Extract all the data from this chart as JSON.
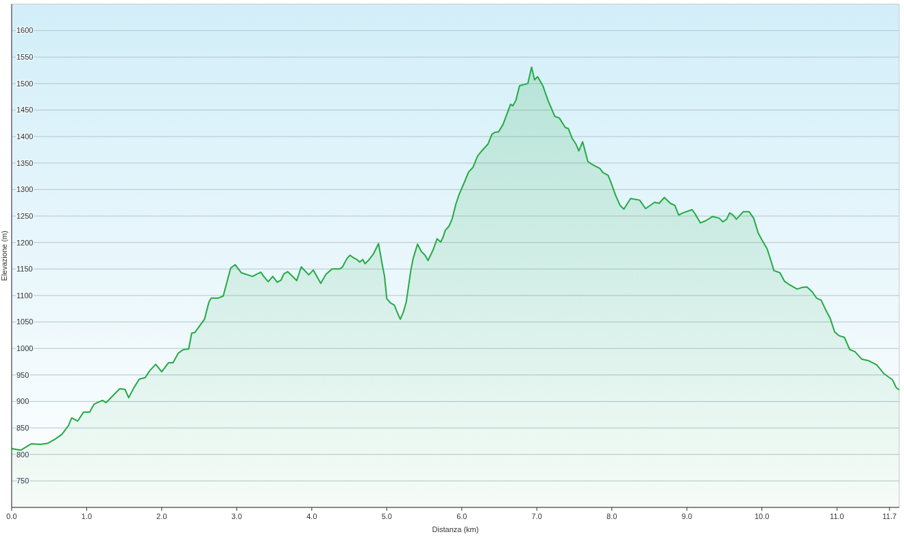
{
  "chart_data": {
    "type": "area",
    "xlabel": "Distanza  (km)",
    "ylabel": "Elevazione (m)",
    "xlim": [
      0,
      11.83
    ],
    "ylim": [
      700,
      1650
    ],
    "xticks": [
      {
        "value": 0,
        "label": "0.0"
      },
      {
        "value": 1,
        "label": "1.0"
      },
      {
        "value": 2,
        "label": "2.0"
      },
      {
        "value": 3,
        "label": "3.0"
      },
      {
        "value": 4,
        "label": "4.0"
      },
      {
        "value": 5,
        "label": "5.0"
      },
      {
        "value": 6,
        "label": "6.0"
      },
      {
        "value": 7,
        "label": "7.0"
      },
      {
        "value": 8,
        "label": "8.0"
      },
      {
        "value": 9,
        "label": "9.0"
      },
      {
        "value": 10,
        "label": "10.0"
      },
      {
        "value": 11,
        "label": "11.0"
      },
      {
        "value": 11.7,
        "label": "11.7"
      }
    ],
    "yticks": [
      750,
      800,
      850,
      900,
      950,
      1000,
      1050,
      1100,
      1150,
      1200,
      1250,
      1300,
      1350,
      1400,
      1450,
      1500,
      1550,
      1600
    ],
    "grid": "y",
    "marker": "none",
    "series": [
      {
        "color": "#22aa44",
        "x": [
          0,
          0.12,
          0.26,
          0.39,
          0.48,
          0.58,
          0.67,
          0.76,
          0.8,
          0.88,
          0.96,
          1.04,
          1.1,
          1.21,
          1.26,
          1.44,
          1.51,
          1.56,
          1.63,
          1.7,
          1.78,
          1.84,
          1.92,
          2,
          2.09,
          2.15,
          2.22,
          2.29,
          2.36,
          2.4,
          2.44,
          2.57,
          2.63,
          2.66,
          2.75,
          2.82,
          2.92,
          2.98,
          3.06,
          3.21,
          3.32,
          3.36,
          3.42,
          3.48,
          3.54,
          3.59,
          3.63,
          3.68,
          3.8,
          3.86,
          3.96,
          4.02,
          4.12,
          4.19,
          4.27,
          4.37,
          4.41,
          4.47,
          4.51,
          4.56,
          4.61,
          4.64,
          4.68,
          4.71,
          4.76,
          4.82,
          4.89,
          4.94,
          4.97,
          5,
          5.05,
          5.1,
          5.14,
          5.18,
          5.22,
          5.26,
          5.32,
          5.35,
          5.41,
          5.46,
          5.51,
          5.55,
          5.62,
          5.67,
          5.72,
          5.75,
          5.78,
          5.83,
          5.87,
          5.92,
          5.96,
          6.01,
          6.05,
          6.09,
          6.15,
          6.21,
          6.26,
          6.35,
          6.4,
          6.44,
          6.49,
          6.55,
          6.6,
          6.65,
          6.68,
          6.72,
          6.77,
          6.88,
          6.93,
          6.97,
          7.01,
          7.08,
          7.15,
          7.24,
          7.3,
          7.38,
          7.42,
          7.47,
          7.52,
          7.56,
          7.61,
          7.63,
          7.68,
          7.73,
          7.84,
          7.88,
          7.95,
          8,
          8.05,
          8.11,
          8.16,
          8.25,
          8.37,
          8.45,
          8.57,
          8.63,
          8.7,
          8.78,
          8.84,
          8.89,
          8.95,
          9.07,
          9.11,
          9.18,
          9.25,
          9.34,
          9.43,
          9.48,
          9.53,
          9.57,
          9.62,
          9.66,
          9.75,
          9.83,
          9.89,
          9.95,
          10,
          10.07,
          10.12,
          10.16,
          10.24,
          10.3,
          10.37,
          10.47,
          10.53,
          10.6,
          10.67,
          10.73,
          10.79,
          10.85,
          10.91,
          10.97,
          11.03,
          11.1,
          11.17,
          11.24,
          11.33,
          11.42,
          11.53,
          11.63,
          11.7,
          11.74,
          11.79,
          11.83
        ],
        "values": [
          811,
          808,
          820,
          819,
          821,
          829,
          838,
          855,
          869,
          863,
          880,
          880,
          895,
          902,
          898,
          924,
          923,
          907,
          926,
          942,
          945,
          958,
          970,
          956,
          973,
          973,
          991,
          998,
          999,
          1029,
          1030,
          1055,
          1088,
          1095,
          1095,
          1099,
          1152,
          1158,
          1143,
          1136,
          1144,
          1136,
          1126,
          1136,
          1125,
          1129,
          1141,
          1145,
          1128,
          1154,
          1139,
          1148,
          1123,
          1140,
          1150,
          1150,
          1154,
          1170,
          1176,
          1171,
          1167,
          1163,
          1168,
          1160,
          1167,
          1178,
          1198,
          1158,
          1136,
          1094,
          1086,
          1082,
          1068,
          1055,
          1068,
          1088,
          1147,
          1169,
          1197,
          1183,
          1176,
          1166,
          1187,
          1207,
          1201,
          1210,
          1223,
          1231,
          1244,
          1272,
          1289,
          1306,
          1319,
          1333,
          1342,
          1363,
          1372,
          1386,
          1404,
          1408,
          1409,
          1423,
          1442,
          1461,
          1458,
          1468,
          1496,
          1500,
          1531,
          1507,
          1513,
          1496,
          1468,
          1438,
          1435,
          1417,
          1415,
          1397,
          1386,
          1373,
          1390,
          1380,
          1353,
          1348,
          1340,
          1332,
          1327,
          1309,
          1289,
          1270,
          1263,
          1283,
          1280,
          1264,
          1276,
          1274,
          1285,
          1274,
          1270,
          1252,
          1256,
          1262,
          1254,
          1237,
          1241,
          1249,
          1246,
          1239,
          1244,
          1256,
          1251,
          1244,
          1258,
          1258,
          1246,
          1218,
          1205,
          1188,
          1166,
          1147,
          1143,
          1127,
          1120,
          1112,
          1115,
          1116,
          1107,
          1095,
          1091,
          1073,
          1057,
          1031,
          1024,
          1021,
          998,
          994,
          980,
          977,
          969,
          952,
          945,
          941,
          926,
          922
        ]
      }
    ]
  }
}
